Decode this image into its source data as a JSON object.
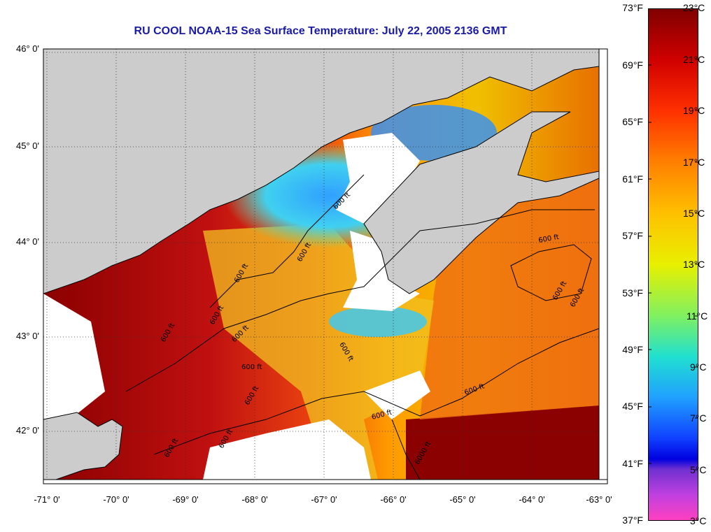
{
  "title": "RU COOL  NOAA-15  Sea Surface Temperature:  July 22, 2005 2136 GMT",
  "map": {
    "lat_labels": [
      "46° 0'",
      "45° 0'",
      "44° 0'",
      "43° 0'",
      "42° 0'"
    ],
    "lon_labels": [
      "-71° 0'",
      "-70° 0'",
      "-69° 0'",
      "-68° 0'",
      "-67° 0'",
      "-66° 0'",
      "-65° 0'",
      "-64° 0'",
      "-63° 0'"
    ],
    "contour_label": "600 ft",
    "contour_label_alt": "6000 ft"
  },
  "colorbar": {
    "fahrenheit_labels": [
      "73°F",
      "69°F",
      "65°F",
      "61°F",
      "57°F",
      "53°F",
      "49°F",
      "45°F",
      "41°F",
      "37°F"
    ],
    "celsius_labels": [
      "23°C",
      "21°C",
      "19°C",
      "17°C",
      "15°C",
      "13°C",
      "11°C",
      "9°C",
      "7°C",
      "5°C",
      "3°C"
    ],
    "range_celsius": [
      3,
      23
    ],
    "range_fahrenheit": [
      37,
      73
    ]
  },
  "colors": {
    "land": "#cccccc",
    "title": "#1a1aa8"
  }
}
